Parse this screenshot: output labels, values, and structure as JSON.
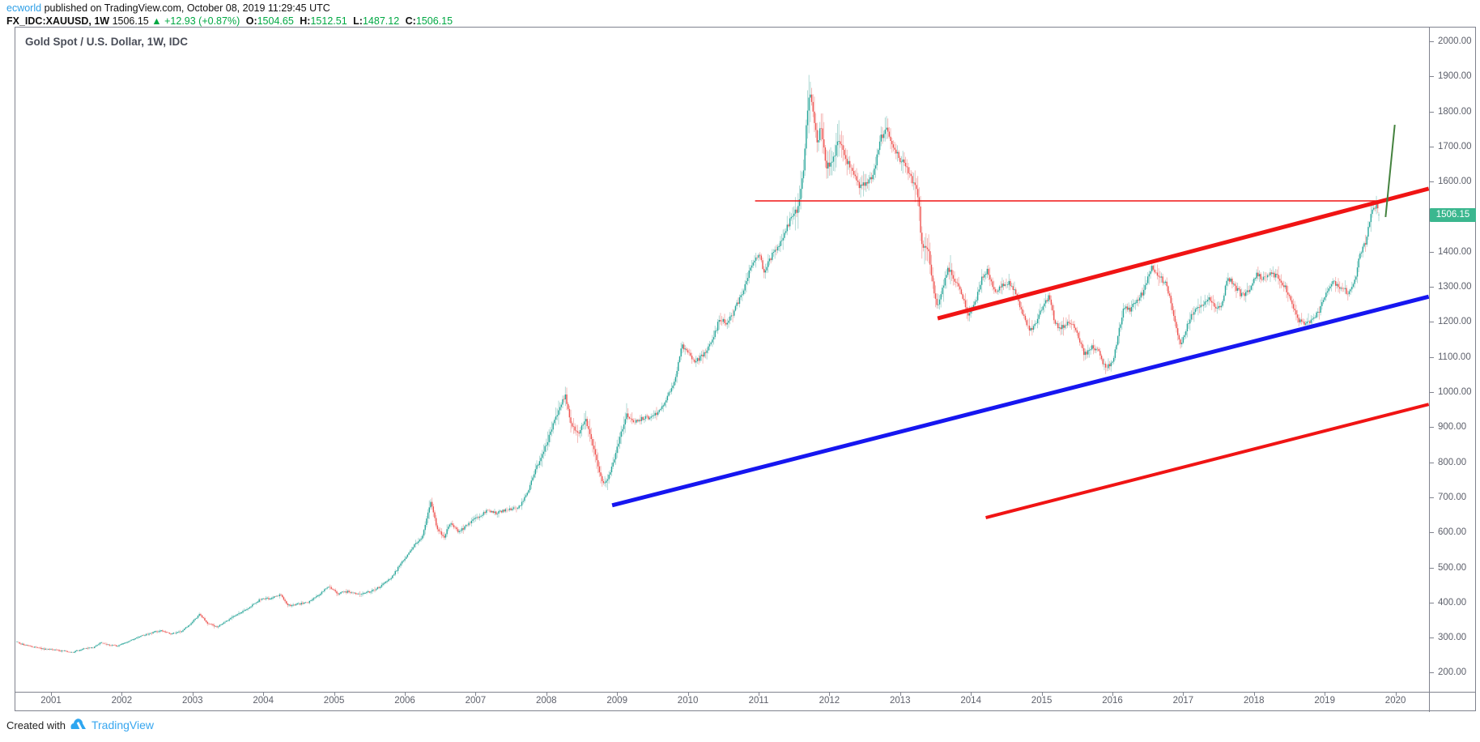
{
  "header": {
    "author": "ecworld",
    "published_text": "published on TradingView.com, October 08, 2019 11:29:45 UTC",
    "symbol_text": "FX_IDC:XAUUSD, 1W",
    "price": "1506.15",
    "arrow": "▲",
    "change_text": "+12.93 (+0.87%)",
    "o_label": "O:",
    "o_value": "1504.65",
    "h_label": "H:",
    "h_value": "1512.51",
    "l_label": "L:",
    "l_value": "1487.12",
    "c_label": "C:",
    "c_value": "1506.15"
  },
  "chart": {
    "title": "Gold Spot / U.S. Dollar, 1W, IDC",
    "price_badge": "1506.15"
  },
  "footer": {
    "created_with": "Created with",
    "brand": "TradingView"
  },
  "colors": {
    "up_body": "#26a69a",
    "up_wick": "#a9d6d1",
    "down_body": "#ef5350",
    "down_wick": "#f3b2b0",
    "red": "#f01414",
    "blue": "#1616f0",
    "green": "#44823e",
    "badge_bg": "#3bb78f",
    "header_green": "#00a843",
    "author_blue": "#2e9fe6",
    "brand_blue": "#37a6ef",
    "axis_text": "#5d606b",
    "border": "#80838e"
  },
  "chart_data": {
    "type": "candlestick",
    "symbol": "FX_IDC:XAUUSD",
    "timeframe": "1W",
    "title": "Gold Spot / U.S. Dollar, 1W, IDC",
    "legend_position": "top-left",
    "grid": false,
    "x_axis": {
      "ticks": [
        2001,
        2002,
        2003,
        2004,
        2005,
        2006,
        2007,
        2008,
        2009,
        2010,
        2011,
        2012,
        2013,
        2014,
        2015,
        2016,
        2017,
        2018,
        2019,
        2020
      ],
      "range": [
        2000.5,
        2020.47
      ]
    },
    "y_axis": {
      "ticks": [
        200,
        300,
        400,
        500,
        600,
        700,
        800,
        900,
        1000,
        1100,
        1200,
        1300,
        1400,
        1500,
        1600,
        1700,
        1800,
        1900,
        2000
      ],
      "range_shown": [
        145,
        2039
      ],
      "format": "0.00"
    },
    "last_bar": {
      "open": 1504.65,
      "high": 1512.51,
      "low": 1487.12,
      "close": 1506.15,
      "change": "+12.93 (+0.87%)",
      "t": 2019.765
    },
    "last_price": 1506.15,
    "price_anchors": [
      [
        2000.5,
        288
      ],
      [
        2000.6,
        280
      ],
      [
        2000.75,
        273
      ],
      [
        2000.9,
        268
      ],
      [
        2001.0,
        266
      ],
      [
        2001.15,
        262
      ],
      [
        2001.3,
        258
      ],
      [
        2001.45,
        268
      ],
      [
        2001.6,
        272
      ],
      [
        2001.7,
        287
      ],
      [
        2001.8,
        279
      ],
      [
        2001.95,
        276
      ],
      [
        2002.1,
        290
      ],
      [
        2002.25,
        303
      ],
      [
        2002.4,
        312
      ],
      [
        2002.55,
        320
      ],
      [
        2002.7,
        310
      ],
      [
        2002.85,
        318
      ],
      [
        2003.0,
        345
      ],
      [
        2003.1,
        368
      ],
      [
        2003.2,
        342
      ],
      [
        2003.35,
        330
      ],
      [
        2003.5,
        350
      ],
      [
        2003.65,
        368
      ],
      [
        2003.8,
        385
      ],
      [
        2003.95,
        408
      ],
      [
        2004.1,
        412
      ],
      [
        2004.25,
        422
      ],
      [
        2004.35,
        392
      ],
      [
        2004.5,
        395
      ],
      [
        2004.65,
        402
      ],
      [
        2004.8,
        425
      ],
      [
        2004.92,
        445
      ],
      [
        2005.05,
        425
      ],
      [
        2005.2,
        432
      ],
      [
        2005.35,
        422
      ],
      [
        2005.5,
        430
      ],
      [
        2005.65,
        445
      ],
      [
        2005.8,
        468
      ],
      [
        2005.95,
        512
      ],
      [
        2006.1,
        555
      ],
      [
        2006.25,
        590
      ],
      [
        2006.37,
        690
      ],
      [
        2006.45,
        615
      ],
      [
        2006.55,
        585
      ],
      [
        2006.65,
        630
      ],
      [
        2006.75,
        600
      ],
      [
        2006.85,
        615
      ],
      [
        2007.0,
        640
      ],
      [
        2007.15,
        660
      ],
      [
        2007.3,
        655
      ],
      [
        2007.45,
        665
      ],
      [
        2007.6,
        670
      ],
      [
        2007.72,
        705
      ],
      [
        2007.85,
        780
      ],
      [
        2008.0,
        850
      ],
      [
        2008.1,
        910
      ],
      [
        2008.2,
        965
      ],
      [
        2008.27,
        990
      ],
      [
        2008.35,
        905
      ],
      [
        2008.45,
        880
      ],
      [
        2008.55,
        925
      ],
      [
        2008.65,
        850
      ],
      [
        2008.73,
        790
      ],
      [
        2008.8,
        735
      ],
      [
        2008.88,
        760
      ],
      [
        2008.95,
        800
      ],
      [
        2009.05,
        880
      ],
      [
        2009.13,
        935
      ],
      [
        2009.25,
        915
      ],
      [
        2009.35,
        925
      ],
      [
        2009.5,
        930
      ],
      [
        2009.6,
        945
      ],
      [
        2009.7,
        985
      ],
      [
        2009.82,
        1035
      ],
      [
        2009.92,
        1135
      ],
      [
        2010.0,
        1110
      ],
      [
        2010.1,
        1085
      ],
      [
        2010.22,
        1105
      ],
      [
        2010.35,
        1150
      ],
      [
        2010.45,
        1210
      ],
      [
        2010.55,
        1195
      ],
      [
        2010.65,
        1230
      ],
      [
        2010.78,
        1290
      ],
      [
        2010.9,
        1360
      ],
      [
        2011.0,
        1395
      ],
      [
        2011.08,
        1345
      ],
      [
        2011.2,
        1395
      ],
      [
        2011.33,
        1430
      ],
      [
        2011.45,
        1495
      ],
      [
        2011.55,
        1520
      ],
      [
        2011.63,
        1620
      ],
      [
        2011.68,
        1790
      ],
      [
        2011.72,
        1850
      ],
      [
        2011.78,
        1790
      ],
      [
        2011.83,
        1700
      ],
      [
        2011.88,
        1770
      ],
      [
        2011.95,
        1640
      ],
      [
        2012.05,
        1660
      ],
      [
        2012.13,
        1720
      ],
      [
        2012.22,
        1670
      ],
      [
        2012.32,
        1630
      ],
      [
        2012.42,
        1585
      ],
      [
        2012.52,
        1600
      ],
      [
        2012.62,
        1615
      ],
      [
        2012.72,
        1720
      ],
      [
        2012.8,
        1755
      ],
      [
        2012.9,
        1700
      ],
      [
        2013.0,
        1665
      ],
      [
        2013.1,
        1640
      ],
      [
        2013.2,
        1590
      ],
      [
        2013.26,
        1555
      ],
      [
        2013.3,
        1420
      ],
      [
        2013.4,
        1400
      ],
      [
        2013.48,
        1285
      ],
      [
        2013.52,
        1245
      ],
      [
        2013.62,
        1310
      ],
      [
        2013.68,
        1355
      ],
      [
        2013.78,
        1315
      ],
      [
        2013.88,
        1275
      ],
      [
        2013.96,
        1215
      ],
      [
        2014.05,
        1245
      ],
      [
        2014.15,
        1320
      ],
      [
        2014.23,
        1350
      ],
      [
        2014.33,
        1290
      ],
      [
        2014.43,
        1300
      ],
      [
        2014.53,
        1315
      ],
      [
        2014.63,
        1285
      ],
      [
        2014.73,
        1225
      ],
      [
        2014.83,
        1175
      ],
      [
        2014.92,
        1195
      ],
      [
        2015.02,
        1245
      ],
      [
        2015.1,
        1270
      ],
      [
        2015.2,
        1190
      ],
      [
        2015.3,
        1185
      ],
      [
        2015.4,
        1200
      ],
      [
        2015.5,
        1170
      ],
      [
        2015.6,
        1105
      ],
      [
        2015.7,
        1130
      ],
      [
        2015.8,
        1115
      ],
      [
        2015.9,
        1068
      ],
      [
        2016.0,
        1082
      ],
      [
        2016.08,
        1160
      ],
      [
        2016.16,
        1240
      ],
      [
        2016.25,
        1235
      ],
      [
        2016.35,
        1260
      ],
      [
        2016.45,
        1290
      ],
      [
        2016.55,
        1355
      ],
      [
        2016.65,
        1330
      ],
      [
        2016.75,
        1310
      ],
      [
        2016.82,
        1260
      ],
      [
        2016.9,
        1185
      ],
      [
        2016.97,
        1135
      ],
      [
        2017.07,
        1200
      ],
      [
        2017.17,
        1235
      ],
      [
        2017.27,
        1250
      ],
      [
        2017.37,
        1270
      ],
      [
        2017.45,
        1235
      ],
      [
        2017.55,
        1255
      ],
      [
        2017.63,
        1330
      ],
      [
        2017.73,
        1300
      ],
      [
        2017.83,
        1275
      ],
      [
        2017.93,
        1290
      ],
      [
        2018.03,
        1335
      ],
      [
        2018.13,
        1325
      ],
      [
        2018.23,
        1340
      ],
      [
        2018.33,
        1330
      ],
      [
        2018.43,
        1305
      ],
      [
        2018.53,
        1255
      ],
      [
        2018.63,
        1205
      ],
      [
        2018.73,
        1190
      ],
      [
        2018.83,
        1210
      ],
      [
        2018.93,
        1235
      ],
      [
        2019.03,
        1290
      ],
      [
        2019.13,
        1315
      ],
      [
        2019.23,
        1295
      ],
      [
        2019.33,
        1285
      ],
      [
        2019.43,
        1320
      ],
      [
        2019.5,
        1400
      ],
      [
        2019.58,
        1425
      ],
      [
        2019.64,
        1500
      ],
      [
        2019.7,
        1525
      ],
      [
        2019.74,
        1540
      ],
      [
        2019.77,
        1495
      ]
    ],
    "drawings": [
      {
        "kind": "horizontal-line",
        "price": 1545,
        "t1": 2010.95,
        "t2": 2019.8,
        "color": "red",
        "width": 1.5
      },
      {
        "kind": "trend-line",
        "t1": 2013.53,
        "p1": 1210,
        "t2": 2020.47,
        "p2": 1580,
        "color": "red",
        "width": 5
      },
      {
        "kind": "trend-line",
        "t1": 2008.93,
        "p1": 677,
        "t2": 2020.47,
        "p2": 1272,
        "color": "blue",
        "width": 5
      },
      {
        "kind": "trend-line",
        "t1": 2014.21,
        "p1": 642,
        "t2": 2020.47,
        "p2": 965,
        "color": "red",
        "width": 4
      },
      {
        "kind": "trend-line",
        "t1": 2019.86,
        "p1": 1499,
        "t2": 2019.99,
        "p2": 1762,
        "color": "green",
        "width": 2
      }
    ]
  }
}
